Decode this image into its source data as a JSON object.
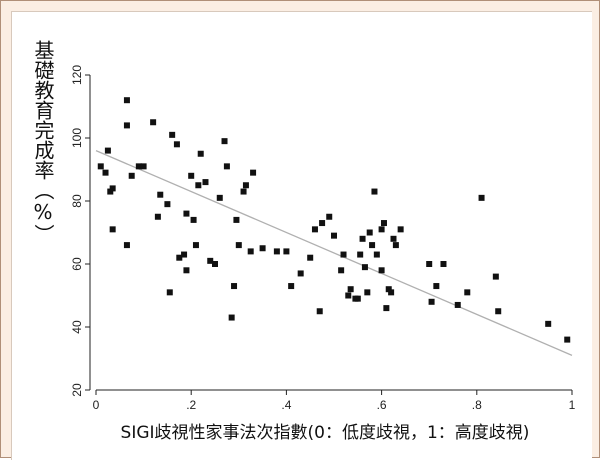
{
  "chart_data": {
    "type": "scatter",
    "title": "",
    "ylabel": "基礎教育完成率（%）",
    "xlabel": "SIGI歧視性家事法次指數(0：低度歧視，1：高度歧視)",
    "xlim": [
      0,
      1
    ],
    "ylim": [
      20,
      120
    ],
    "x_ticks": [
      0,
      0.2,
      0.4,
      0.6,
      0.8,
      1
    ],
    "x_tick_labels": [
      "0",
      ".2",
      ".4",
      ".6",
      ".8",
      "1"
    ],
    "y_ticks": [
      20,
      40,
      60,
      80,
      100,
      120
    ],
    "y_tick_labels": [
      "20",
      "40",
      "60",
      "80",
      "100",
      "120"
    ],
    "grid": false,
    "legend": "none",
    "colors": {
      "points": "#111111",
      "fit_line": "#b0b0b0",
      "frame_bg": "#fbeee3"
    },
    "points": [
      [
        0.01,
        91
      ],
      [
        0.02,
        89
      ],
      [
        0.025,
        96
      ],
      [
        0.03,
        83
      ],
      [
        0.035,
        84
      ],
      [
        0.035,
        71
      ],
      [
        0.065,
        112
      ],
      [
        0.065,
        104
      ],
      [
        0.065,
        66
      ],
      [
        0.075,
        88
      ],
      [
        0.09,
        91
      ],
      [
        0.1,
        91
      ],
      [
        0.12,
        105
      ],
      [
        0.13,
        75
      ],
      [
        0.135,
        82
      ],
      [
        0.15,
        79
      ],
      [
        0.155,
        51
      ],
      [
        0.16,
        101
      ],
      [
        0.17,
        98
      ],
      [
        0.175,
        62
      ],
      [
        0.185,
        63
      ],
      [
        0.19,
        58
      ],
      [
        0.19,
        76
      ],
      [
        0.2,
        88
      ],
      [
        0.205,
        74
      ],
      [
        0.21,
        66
      ],
      [
        0.215,
        85
      ],
      [
        0.22,
        95
      ],
      [
        0.23,
        86
      ],
      [
        0.24,
        61
      ],
      [
        0.25,
        60
      ],
      [
        0.26,
        81
      ],
      [
        0.27,
        99
      ],
      [
        0.275,
        91
      ],
      [
        0.285,
        43
      ],
      [
        0.29,
        53
      ],
      [
        0.295,
        74
      ],
      [
        0.3,
        66
      ],
      [
        0.31,
        83
      ],
      [
        0.315,
        85
      ],
      [
        0.325,
        64
      ],
      [
        0.33,
        89
      ],
      [
        0.35,
        65
      ],
      [
        0.38,
        64
      ],
      [
        0.4,
        64
      ],
      [
        0.41,
        53
      ],
      [
        0.43,
        57
      ],
      [
        0.45,
        62
      ],
      [
        0.46,
        71
      ],
      [
        0.47,
        45
      ],
      [
        0.475,
        73
      ],
      [
        0.49,
        75
      ],
      [
        0.5,
        69
      ],
      [
        0.515,
        58
      ],
      [
        0.52,
        63
      ],
      [
        0.53,
        50
      ],
      [
        0.535,
        52
      ],
      [
        0.545,
        49
      ],
      [
        0.55,
        49
      ],
      [
        0.555,
        63
      ],
      [
        0.56,
        68
      ],
      [
        0.565,
        59
      ],
      [
        0.57,
        51
      ],
      [
        0.575,
        70
      ],
      [
        0.58,
        66
      ],
      [
        0.585,
        83
      ],
      [
        0.59,
        63
      ],
      [
        0.6,
        58
      ],
      [
        0.6,
        71
      ],
      [
        0.605,
        73
      ],
      [
        0.61,
        46
      ],
      [
        0.615,
        52
      ],
      [
        0.62,
        51
      ],
      [
        0.625,
        68
      ],
      [
        0.63,
        66
      ],
      [
        0.64,
        71
      ],
      [
        0.7,
        60
      ],
      [
        0.705,
        48
      ],
      [
        0.715,
        53
      ],
      [
        0.73,
        60
      ],
      [
        0.76,
        47
      ],
      [
        0.78,
        51
      ],
      [
        0.81,
        81
      ],
      [
        0.84,
        56
      ],
      [
        0.845,
        45
      ],
      [
        0.95,
        41
      ],
      [
        0.99,
        36
      ]
    ],
    "fit_line": {
      "x": [
        0,
        1
      ],
      "y": [
        96,
        31
      ]
    }
  }
}
